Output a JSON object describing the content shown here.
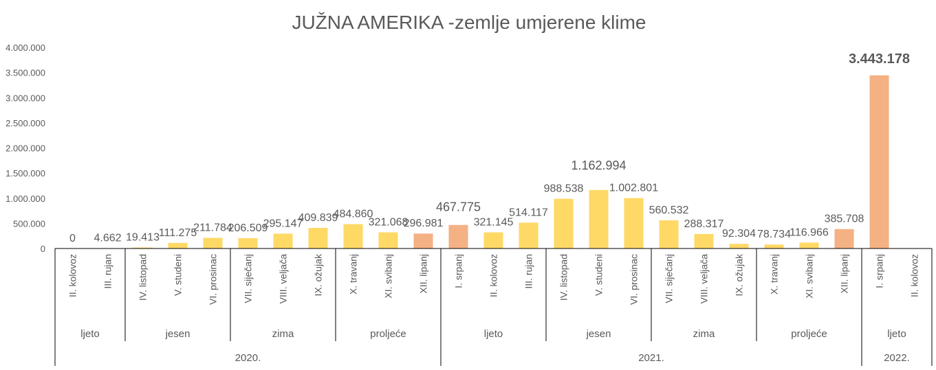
{
  "chart_data": {
    "type": "bar",
    "title": "JUŽNA AMERIKA -zemlje umjerene klime",
    "xlabel": "",
    "ylabel": "",
    "ylim": [
      0,
      4000000
    ],
    "yticks": [
      0,
      500000,
      1000000,
      1500000,
      2000000,
      2500000,
      3000000,
      3500000,
      4000000
    ],
    "ytick_labels": [
      "0",
      "500.000",
      "1.000.000",
      "1.500.000",
      "2.000.000",
      "2.500.000",
      "3.000.000",
      "3.500.000",
      "4.000.000"
    ],
    "grid": false,
    "legend": "none",
    "colors": {
      "default": "#FFD966",
      "highlight": "#F4B183"
    },
    "categories": [
      "II. kolovoz",
      "III. rujan",
      "IV. listopad",
      "V. studeni",
      "VI. prosinac",
      "VII. siječanj",
      "VIII. veljača",
      "IX. ožujak",
      "X. travanj",
      "XI. svibanj",
      "XII. lipanj",
      "I. srpanj",
      "II. kolovoz",
      "III. rujan",
      "IV. listopad",
      "V. studeni",
      "VI. prosinac",
      "VII. siječanj",
      "VIII. veljača",
      "IX. ožujak",
      "X. travanj",
      "XI. svibanj",
      "XII. lipanj",
      "I. srpanj",
      "II. kolovoz"
    ],
    "values": [
      0,
      4662,
      19413,
      111275,
      211784,
      206509,
      295147,
      409839,
      484860,
      321068,
      296981,
      467775,
      321145,
      514117,
      988538,
      1162994,
      1002801,
      560532,
      288317,
      92304,
      78734,
      116966,
      385708,
      3443178,
      null
    ],
    "data_labels": [
      "0",
      "4.662",
      "19.413",
      "111.275",
      "211.784",
      "206.509",
      "295.147",
      "409.839",
      "484.860",
      "321.068",
      "296.981",
      "467.775",
      "321.145",
      "514.117",
      "988.538",
      "1.162.994",
      "1.002.801",
      "560.532",
      "288.317",
      "92.304",
      "78.734",
      "116.966",
      "385.708",
      "3.443.178",
      ""
    ],
    "highlighted": [
      10,
      11,
      22,
      23
    ],
    "seasons": [
      {
        "label": "ljeto",
        "start": 0,
        "end": 2
      },
      {
        "label": "jesen",
        "start": 2,
        "end": 5
      },
      {
        "label": "zima",
        "start": 5,
        "end": 8
      },
      {
        "label": "proljeće",
        "start": 8,
        "end": 11
      },
      {
        "label": "ljeto",
        "start": 11,
        "end": 14
      },
      {
        "label": "jesen",
        "start": 14,
        "end": 17
      },
      {
        "label": "zima",
        "start": 17,
        "end": 20
      },
      {
        "label": "proljeće",
        "start": 20,
        "end": 23
      },
      {
        "label": "ljeto",
        "start": 23,
        "end": 25
      }
    ],
    "years": [
      {
        "label": "2020.",
        "start": 0,
        "end": 11
      },
      {
        "label": "2021.",
        "start": 11,
        "end": 23
      },
      {
        "label": "2022.",
        "start": 23,
        "end": 25
      }
    ]
  }
}
